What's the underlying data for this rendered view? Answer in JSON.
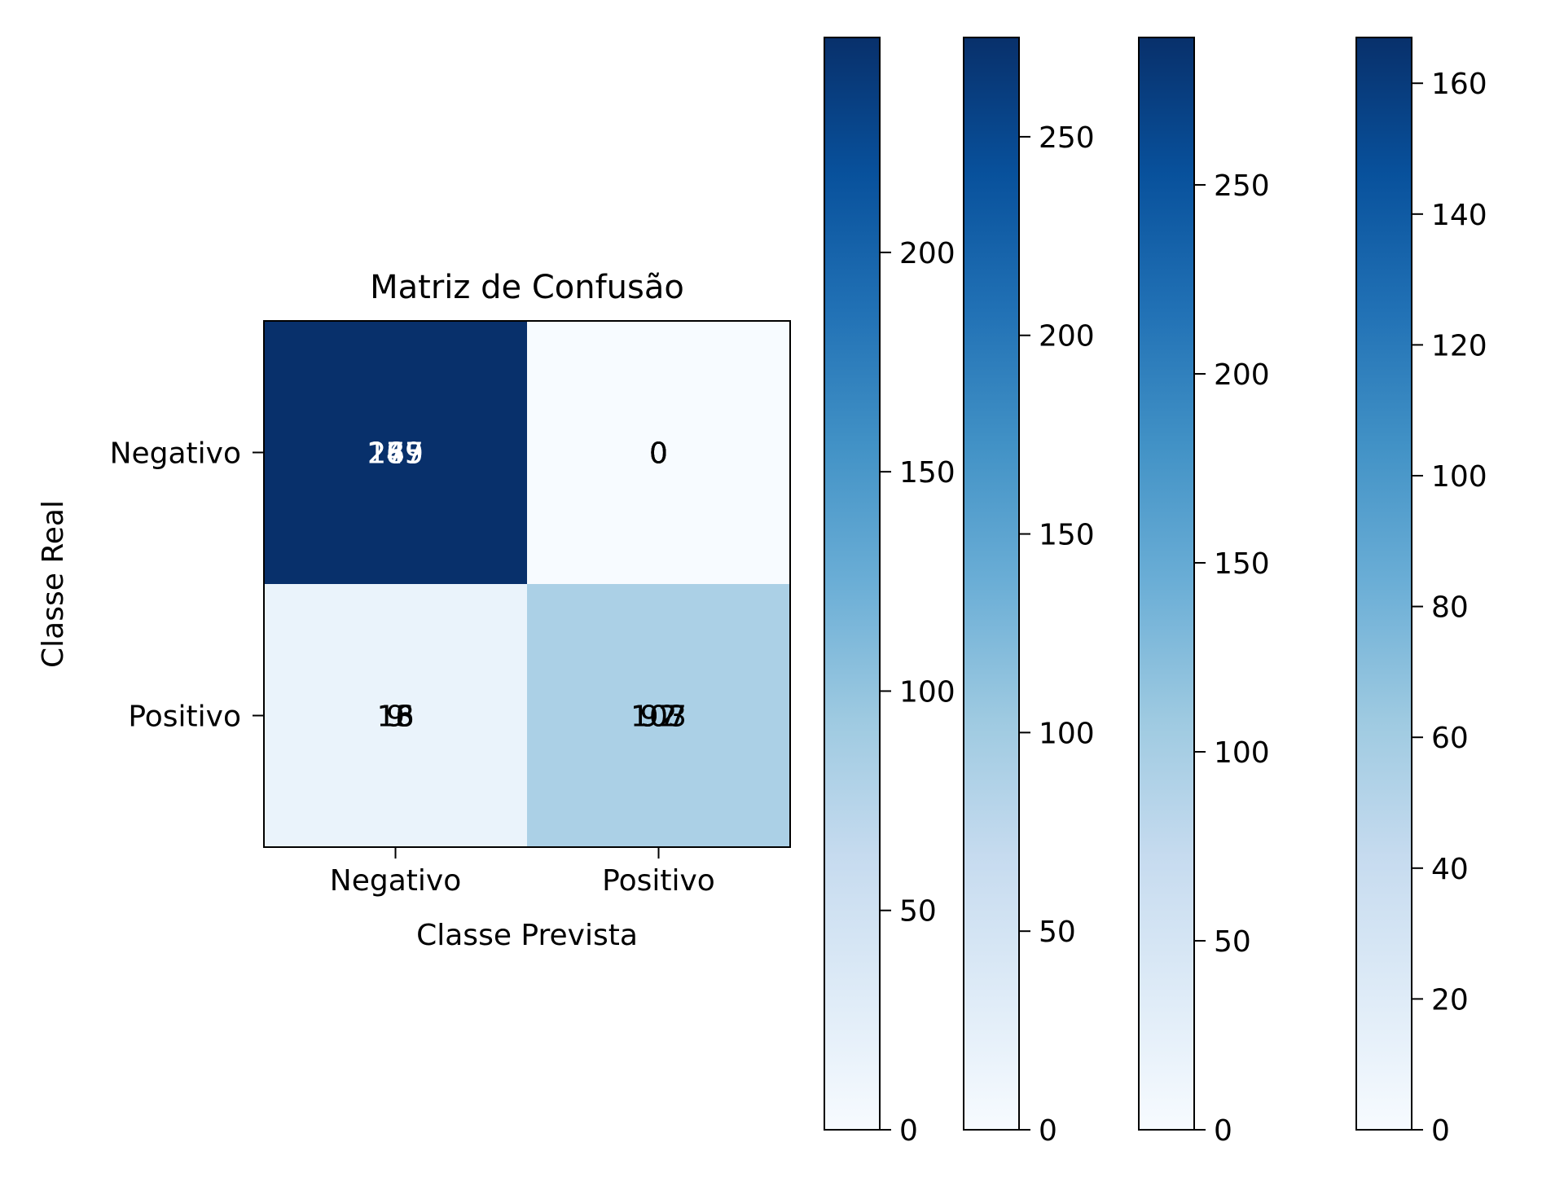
{
  "chart_data": {
    "type": "heatmap",
    "title": "Matriz de Confusão",
    "xlabel": "Classe Prevista",
    "ylabel": "Classe Real",
    "x_categories": [
      "Negativo",
      "Positivo"
    ],
    "y_categories": [
      "Negativo",
      "Positivo"
    ],
    "colormap": "Blues",
    "matrix": [
      [
        275,
        0
      ],
      [
        18,
        92
      ]
    ],
    "cell_annotations": [
      [
        [
          "285",
          "275",
          "249",
          "167"
        ],
        [
          "0",
          "0",
          "0",
          "0"
        ]
      ],
      [
        [
          "13",
          "16",
          "18",
          "9"
        ],
        [
          "107",
          "92",
          "97",
          "103"
        ]
      ]
    ],
    "colorbars": [
      {
        "vmin": 0,
        "vmax": 249,
        "ticks": [
          0,
          50,
          100,
          150,
          200
        ]
      },
      {
        "vmin": 0,
        "vmax": 275,
        "ticks": [
          0,
          50,
          100,
          150,
          200,
          250
        ]
      },
      {
        "vmin": 0,
        "vmax": 289,
        "ticks": [
          0,
          50,
          100,
          150,
          200,
          250
        ]
      },
      {
        "vmin": 0,
        "vmax": 167,
        "ticks": [
          0,
          20,
          40,
          60,
          80,
          100,
          120,
          140,
          160
        ]
      }
    ],
    "grid": false
  }
}
